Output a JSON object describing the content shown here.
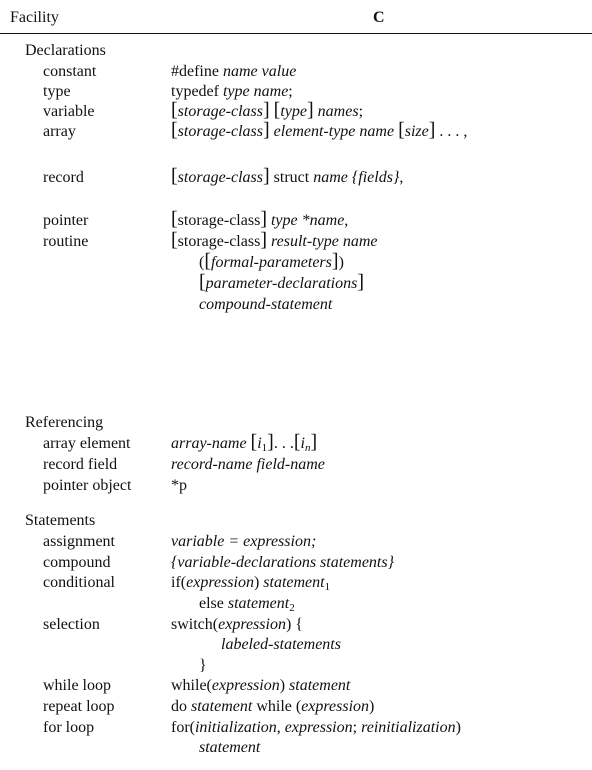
{
  "header": {
    "facility": "Facility",
    "lang": "C"
  },
  "declarations": {
    "title": "Declarations",
    "constant": {
      "label": "constant",
      "kw": "#define",
      "name": "name",
      "value": "value"
    },
    "type": {
      "label": "type",
      "kw": "typedef",
      "text": "type name",
      "semi": ";"
    },
    "variable": {
      "label": "variable",
      "sc": "storage-class",
      "type": "type",
      "names": "names",
      "semi": ";"
    },
    "array": {
      "label": "array",
      "sc": "storage-class",
      "text": "element-type name",
      "size": "size",
      "tail": ". . . ,"
    },
    "record": {
      "label": "record",
      "sc": "storage-class",
      "kw": "struct",
      "text": "name {fields}",
      "comma": ","
    },
    "pointer": {
      "label": "pointer",
      "sc": "storage-class",
      "text": "type *name",
      "comma": ","
    },
    "routine": {
      "label": "routine",
      "sc": "storage-class",
      "text": "result-type name",
      "formal": "formal-parameters",
      "pdecl": "parameter-declarations",
      "compound": "compound-statement"
    }
  },
  "referencing": {
    "title": "Referencing",
    "array_element": {
      "label": "array element",
      "name": "array-name",
      "i1": "i",
      "s1": "1",
      "dots": ". . .",
      "in": "i",
      "sn": "n"
    },
    "record_field": {
      "label": "record field",
      "text": "record-name field-name"
    },
    "pointer_object": {
      "label": "pointer object",
      "text": "*p"
    }
  },
  "statements": {
    "title": "Statements",
    "assignment": {
      "label": "assignment",
      "text": "variable = expression;"
    },
    "compound": {
      "label": "compound",
      "text": "{variable-declarations statements}"
    },
    "conditional": {
      "label": "conditional",
      "kw": "if",
      "expr": "expression",
      "stmt": "statement",
      "s1": "1",
      "else": "else",
      "s2": "2"
    },
    "selection": {
      "label": "selection",
      "kw": "switch",
      "expr": "expression",
      "open": ") {",
      "labeled": "labeled-statements",
      "close": "}"
    },
    "while": {
      "label": "while loop",
      "kw": "while",
      "expr": "expression",
      "stmt": "statement"
    },
    "repeat": {
      "label": "repeat loop",
      "kw": "do",
      "stmt": "statement",
      "kw2": "while",
      "expr": "expression"
    },
    "for": {
      "label": "for loop",
      "kw": "for",
      "init": "initialization",
      "expr": "expression",
      "reinit": "reinitialization",
      "stmt": "statement"
    }
  }
}
